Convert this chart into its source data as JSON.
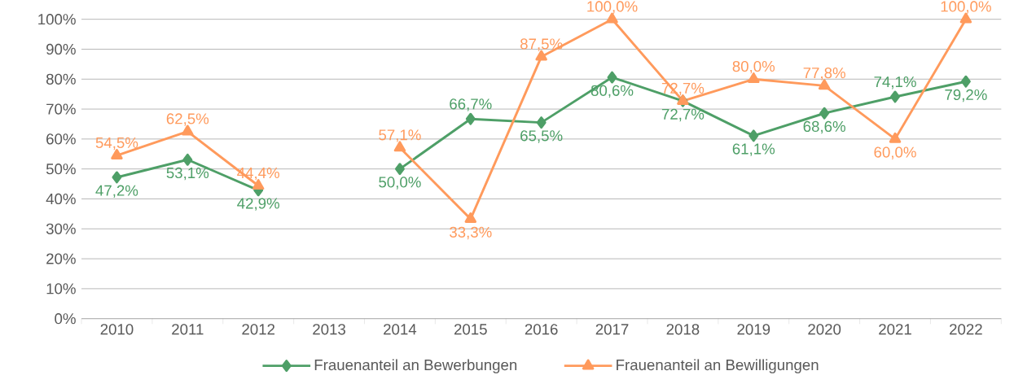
{
  "chart_data": {
    "type": "line",
    "categories": [
      "2010",
      "2011",
      "2012",
      "2013",
      "2014",
      "2015",
      "2016",
      "2017",
      "2018",
      "2019",
      "2020",
      "2021",
      "2022"
    ],
    "series": [
      {
        "name": "Frauenanteil an Bewerbungen",
        "color": "#4e9f67",
        "marker": "diamond",
        "values": [
          47.2,
          53.1,
          42.9,
          null,
          50.0,
          66.7,
          65.5,
          80.6,
          72.7,
          61.1,
          68.6,
          74.1,
          79.2
        ],
        "value_labels": [
          "47,2%",
          "53,1%",
          "42,9%",
          null,
          "50,0%",
          "66,7%",
          "65,5%",
          "80,6%",
          "72,7%",
          "61,1%",
          "68,6%",
          "74,1%",
          "79,2%"
        ]
      },
      {
        "name": "Frauenanteil an Bewilligungen",
        "color": "#ff9a5c",
        "marker": "triangle",
        "values": [
          54.5,
          62.5,
          44.4,
          null,
          57.1,
          33.3,
          87.5,
          100.0,
          72.7,
          80.0,
          77.8,
          60.0,
          100.0
        ],
        "value_labels": [
          "54,5%",
          "62,5%",
          "44,4%",
          null,
          "57,1%",
          "33,3%",
          "87,5%",
          "100,0%",
          "72,7%",
          "80,0%",
          "77,8%",
          "60,0%",
          "100,0%"
        ]
      }
    ],
    "ylim": [
      0,
      100
    ],
    "yticks": [
      {
        "value": 0,
        "label": "0%"
      },
      {
        "value": 10,
        "label": "10%"
      },
      {
        "value": 20,
        "label": "20%"
      },
      {
        "value": 30,
        "label": "30%"
      },
      {
        "value": 40,
        "label": "40%"
      },
      {
        "value": 50,
        "label": "50%"
      },
      {
        "value": 60,
        "label": "60%"
      },
      {
        "value": 70,
        "label": "70%"
      },
      {
        "value": 80,
        "label": "80%"
      },
      {
        "value": 90,
        "label": "90%"
      },
      {
        "value": 100,
        "label": "100%"
      }
    ],
    "grid": "y",
    "legend": "bottom"
  }
}
